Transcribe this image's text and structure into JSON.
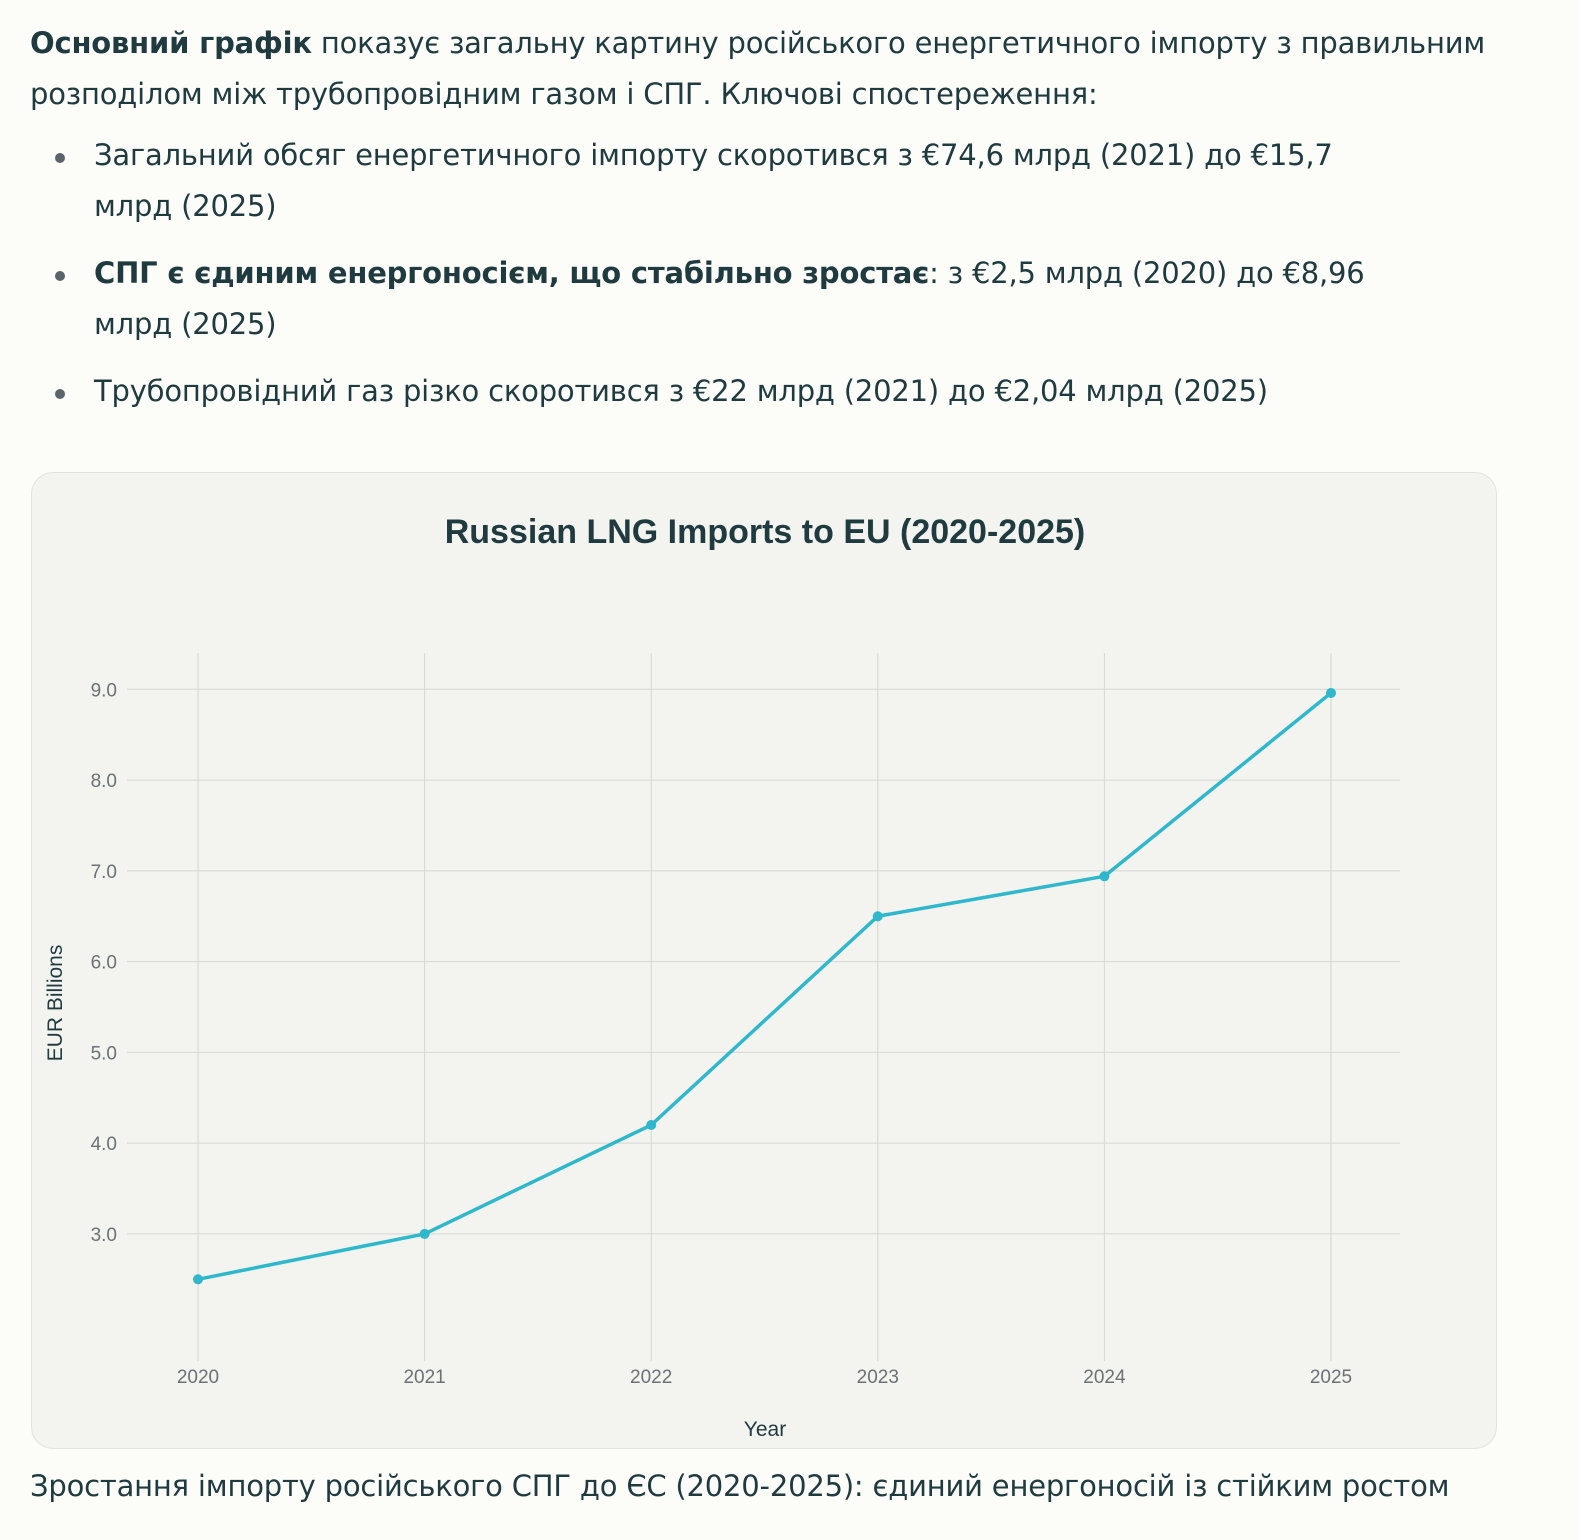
{
  "intro": {
    "bold": "Основний графік",
    "text": " показує загальну картину російського енергетичного імпорту з правильним розподілом між трубопровідним газом і СПГ. Ключові спостереження:"
  },
  "bullets": [
    {
      "bold": "",
      "text": "Загальний обсяг енергетичного імпорту скоротився з €74,6 млрд (2021) до €15,7 млрд (2025)"
    },
    {
      "bold": "СПГ є єдиним енергоносієм, що стабільно зростає",
      "text": ": з €2,5 млрд (2020) до €8,96 млрд (2025)"
    },
    {
      "bold": "",
      "text": "Трубопровідний газ різко скоротився з €22 млрд (2021) до €2,04 млрд (2025)"
    }
  ],
  "chart_data": {
    "type": "line",
    "title": "Russian LNG Imports to EU (2020-2025)",
    "xlabel": "Year",
    "ylabel": "EUR Billions",
    "categories": [
      "2020",
      "2021",
      "2022",
      "2023",
      "2024",
      "2025"
    ],
    "series": [
      {
        "values": [
          2.5,
          3.0,
          4.2,
          6.5,
          6.94,
          8.96
        ]
      }
    ],
    "y_ticks": [
      "3.0",
      "4.0",
      "5.0",
      "6.0",
      "7.0",
      "8.0",
      "9.0"
    ],
    "ylim": [
      1.6,
      9.4
    ],
    "grid": true,
    "line_color": "#2fb7cc",
    "grid_color": "#d6d6d2"
  },
  "caption": "Зростання імпорту російського СПГ до ЄС (2020-2025): єдиний енергоносій із стійким ростом"
}
